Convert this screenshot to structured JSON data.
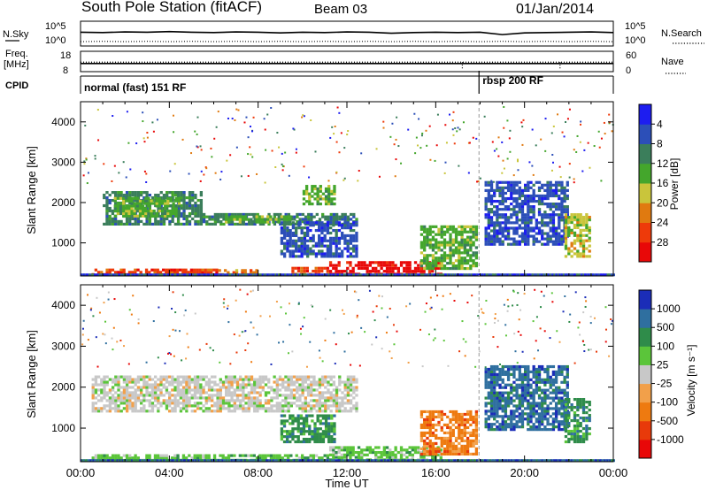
{
  "header": {
    "station": "South Pole Station (fitACF)",
    "beam": "Beam 03",
    "date": "01/Jan/2014"
  },
  "left_labels": {
    "nsky": "N.Sky",
    "freq_line1": "Freq.",
    "freq_line2": "[MHz]",
    "cpid": "CPID"
  },
  "right_labels": {
    "nsearch": "N.Search",
    "nave": "Nave"
  },
  "cpid_programs": [
    {
      "label": "normal (fast) 151 RF",
      "start_hour": 0,
      "end_hour": 17.95
    },
    {
      "label": "rbsp 200 RF",
      "start_hour": 17.95,
      "end_hour": 24
    }
  ],
  "chart_data": [
    {
      "type": "line",
      "panel": "noise",
      "left_ticks": [
        "10^5",
        "10^0"
      ],
      "right_ticks": [
        "10^5",
        "10^0"
      ],
      "series": [
        {
          "name": "N.Sky",
          "values": [
            3.3,
            3.2,
            3.4,
            3.3,
            3.5,
            3.3,
            3.2,
            3.4,
            3.3,
            3.1,
            3.3,
            3.2,
            3.4,
            3.3,
            3.0,
            3.2,
            3.3,
            3.2,
            3.3,
            2.6,
            3.1,
            3.2,
            3.3,
            3.4,
            3.2
          ]
        },
        {
          "name": "N.Search",
          "values": [
            0.5,
            0.6,
            0.5,
            0.6,
            0.5,
            0.6,
            0.5,
            0.6,
            0.5,
            0.6,
            0.5,
            0.6,
            0.5,
            0.6,
            0.5,
            0.6,
            0.5,
            0.6,
            0.5,
            0.6,
            0.5,
            0.6,
            0.5,
            0.6,
            0.5
          ]
        }
      ],
      "xlim": [
        0,
        24
      ]
    },
    {
      "type": "scatter",
      "panel": "frequency",
      "left_ticks": [
        "18",
        "8"
      ],
      "right_ticks": [
        "60",
        "0"
      ],
      "series": [
        {
          "name": "Freq",
          "unit": "MHz",
          "value": 12.0
        },
        {
          "name": "Nave",
          "value": 28,
          "dips": [
            17.2,
            21.6
          ]
        }
      ],
      "xlim": [
        0,
        24
      ]
    },
    {
      "type": "heatmap",
      "panel": "power",
      "ylabel": "Slant Range [km]",
      "ylim": [
        180,
        4500
      ],
      "yticks": [
        1000,
        2000,
        3000,
        4000
      ],
      "xlim": [
        0,
        24
      ],
      "colorbar": {
        "label": "Power [dB]",
        "ticks": [
          "4",
          "8",
          "12",
          "16",
          "20",
          "24",
          "28"
        ],
        "colors": [
          "#1d1df0",
          "#2c4fb8",
          "#3b7e5b",
          "#44a62c",
          "#c9c53b",
          "#e07a10",
          "#ee3a0a",
          "#e80808"
        ]
      },
      "regions": [
        {
          "x": [
            0.5,
            6.2
          ],
          "y": [
            250,
            420
          ],
          "level": 6
        },
        {
          "x": [
            6.2,
            8.0
          ],
          "y": [
            250,
            400
          ],
          "level": 5
        },
        {
          "x": [
            9.5,
            11.2
          ],
          "y": [
            260,
            480
          ],
          "level": 6
        },
        {
          "x": [
            11.2,
            16.3
          ],
          "y": [
            260,
            620
          ],
          "level": 7
        },
        {
          "x": [
            1.0,
            5.5
          ],
          "y": [
            1500,
            2350
          ],
          "level": 2
        },
        {
          "x": [
            1.5,
            4.5
          ],
          "y": [
            1700,
            2200
          ],
          "level": 3
        },
        {
          "x": [
            5.5,
            12.5
          ],
          "y": [
            1500,
            1800
          ],
          "level": 2
        },
        {
          "x": [
            6.5,
            9.5
          ],
          "y": [
            1550,
            1750
          ],
          "level": 3
        },
        {
          "x": [
            9.0,
            12.5
          ],
          "y": [
            700,
            1600
          ],
          "level": 1
        },
        {
          "x": [
            10.0,
            11.5
          ],
          "y": [
            2000,
            2500
          ],
          "level": 3
        },
        {
          "x": [
            15.3,
            17.9
          ],
          "y": [
            400,
            1500
          ],
          "level": 3
        },
        {
          "x": [
            18.2,
            22.0
          ],
          "y": [
            1000,
            2600
          ],
          "level": 1
        },
        {
          "x": [
            21.8,
            23.0
          ],
          "y": [
            700,
            1800
          ],
          "level": 4
        }
      ]
    },
    {
      "type": "heatmap",
      "panel": "velocity",
      "ylabel": "Slant Range [km]",
      "ylim": [
        180,
        4500
      ],
      "yticks": [
        1000,
        2000,
        3000,
        4000
      ],
      "xlim": [
        0,
        24
      ],
      "xticks": [
        "00:00",
        "04:00",
        "08:00",
        "12:00",
        "16:00",
        "20:00",
        "00:00"
      ],
      "xlabel": "Time UT",
      "colorbar": {
        "label": "Velocity [m s⁻¹]",
        "ticks": [
          "1000",
          "500",
          "100",
          "25",
          "-25",
          "-100",
          "-500",
          "-1000"
        ],
        "colors": [
          "#1b2db8",
          "#2f6f9f",
          "#2f8c4a",
          "#5bc53a",
          "#c8c8c8",
          "#f2a04a",
          "#ee7a10",
          "#e83a0a",
          "#e80808"
        ]
      },
      "regions": [
        {
          "x": [
            0.5,
            11.2
          ],
          "y": [
            250,
            420
          ],
          "level": 3
        },
        {
          "x": [
            11.2,
            16.3
          ],
          "y": [
            260,
            620
          ],
          "level": 3
        },
        {
          "x": [
            0.5,
            12.5
          ],
          "y": [
            1450,
            2350
          ],
          "level": 4
        },
        {
          "x": [
            9.0,
            11.5
          ],
          "y": [
            700,
            1400
          ],
          "level": 2
        },
        {
          "x": [
            15.3,
            17.9
          ],
          "y": [
            400,
            1500
          ],
          "level": 6
        },
        {
          "x": [
            18.2,
            22.0
          ],
          "y": [
            1000,
            2600
          ],
          "level": 1
        },
        {
          "x": [
            21.8,
            23.0
          ],
          "y": [
            700,
            1800
          ],
          "level": 2
        }
      ]
    }
  ]
}
